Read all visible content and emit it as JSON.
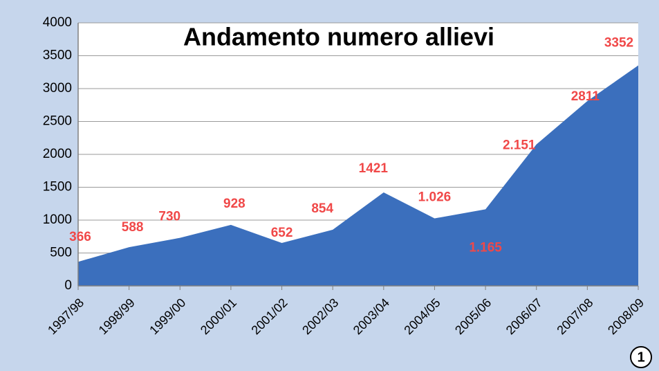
{
  "chart_data": {
    "type": "area",
    "title": "Andamento numero allievi",
    "categories": [
      "1997/98",
      "1998/99",
      "1999/00",
      "2000/01",
      "2001/02",
      "2002/03",
      "2003/04",
      "2004/05",
      "2005/06",
      "2006/07",
      "2007/08",
      "2008/09"
    ],
    "values": [
      366,
      588,
      730,
      928,
      652,
      854,
      1421,
      1026,
      1165,
      2151,
      2811,
      3352
    ],
    "value_labels": [
      "366",
      "588",
      "730",
      "928",
      "652",
      "854",
      "1421",
      "1.026",
      "1.165",
      "2.151",
      "2811",
      "3352"
    ],
    "color": "#3b6fbd",
    "label_color": "#f04848",
    "ylim": [
      0,
      4000
    ],
    "yticks": [
      0,
      500,
      1000,
      1500,
      2000,
      2500,
      3000,
      3500,
      4000
    ],
    "grid": true
  },
  "badge": "1"
}
